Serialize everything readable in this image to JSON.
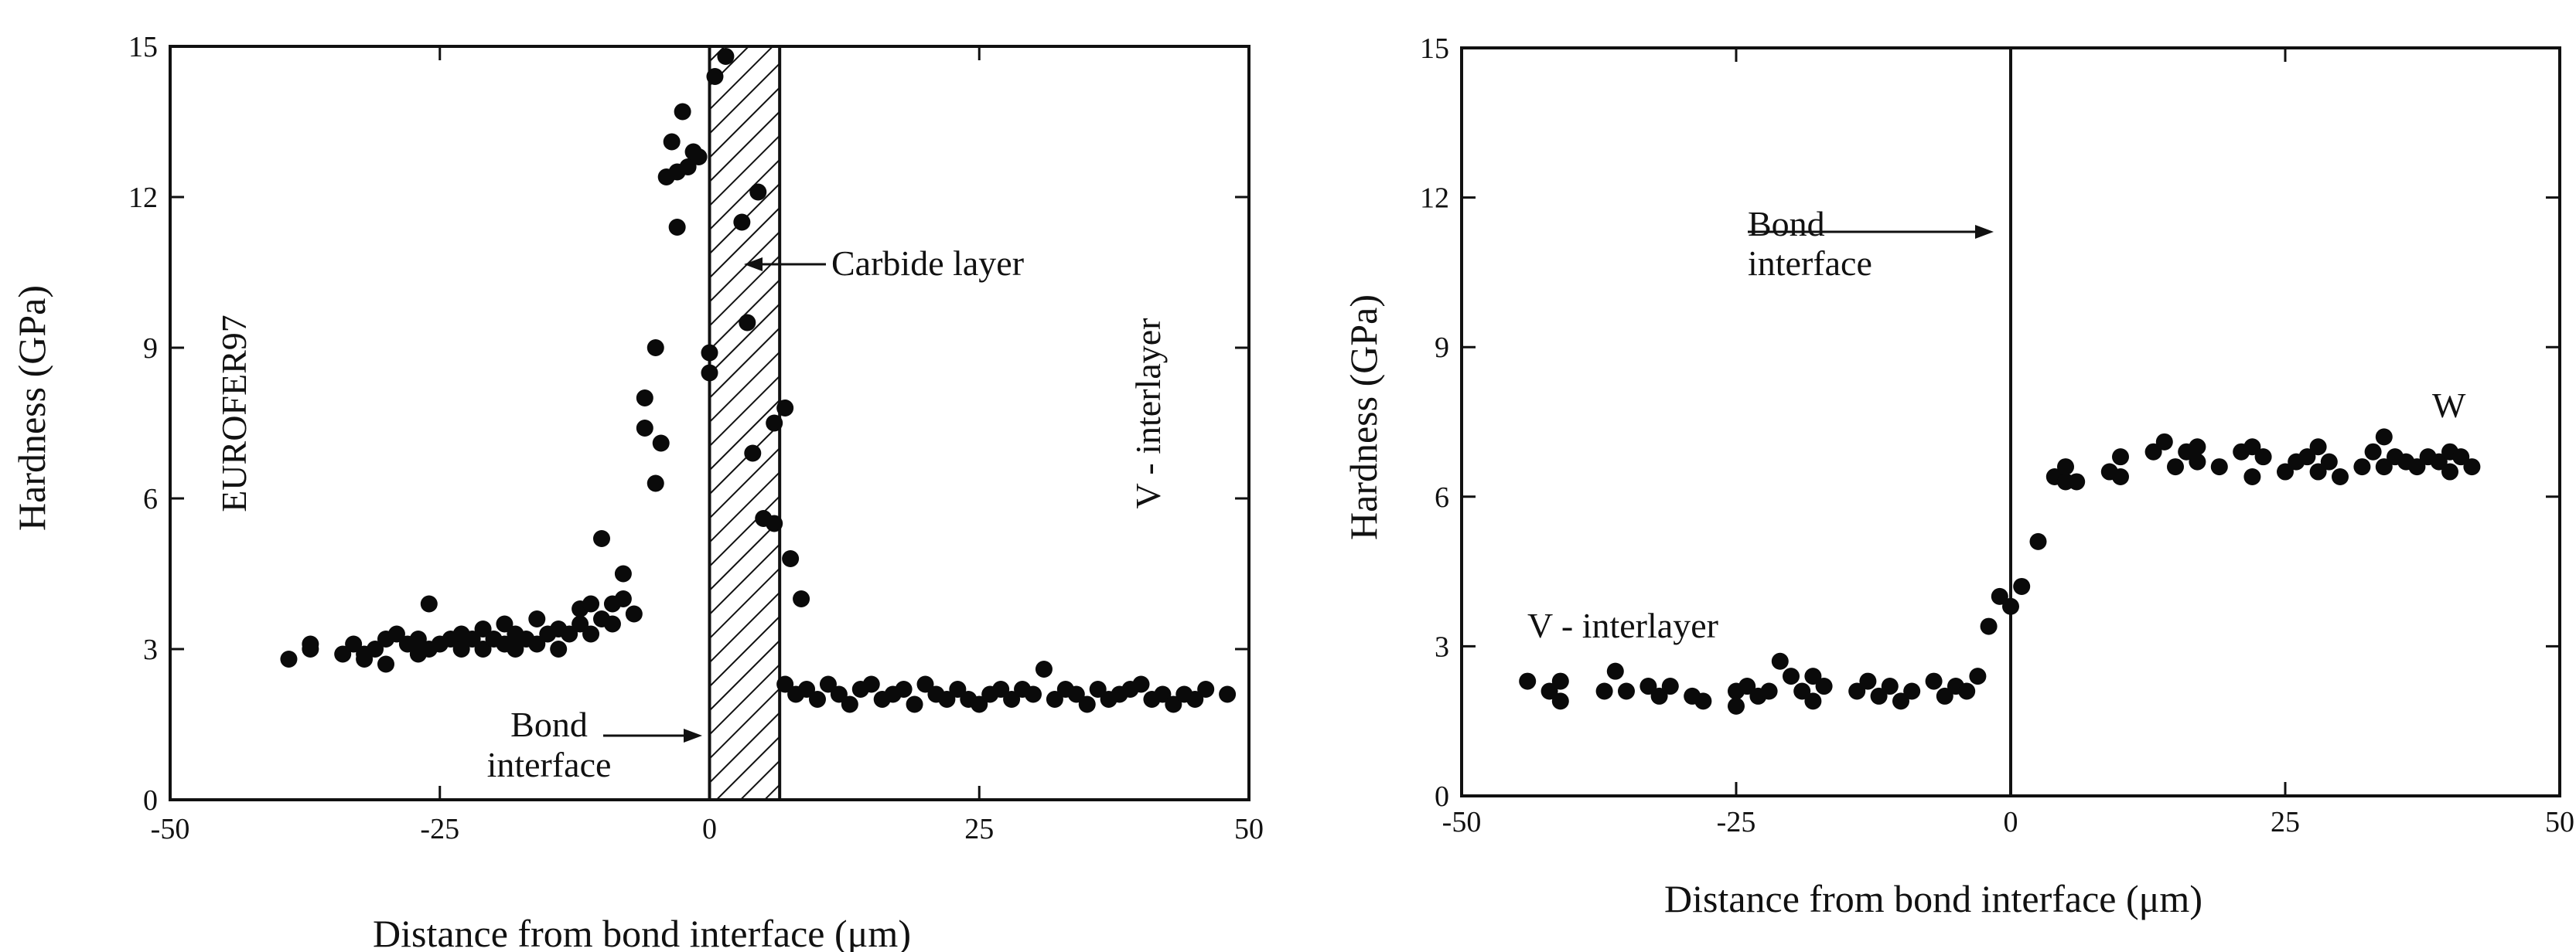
{
  "chart_data": [
    {
      "type": "scatter",
      "title": "",
      "xlabel": "Distance from bond interface (μm)",
      "ylabel": "Hardness (GPa)",
      "xlim": [
        -50,
        50
      ],
      "ylim": [
        0,
        15
      ],
      "xticks": [
        -50,
        -25,
        0,
        25,
        50
      ],
      "yticks": [
        0,
        3,
        6,
        9,
        12,
        15
      ],
      "xtick_labels": [
        "-50",
        "-25",
        "0",
        "25",
        "50"
      ],
      "ytick_labels": [
        "0",
        "3",
        "6",
        "9",
        "12",
        "15"
      ],
      "grid": false,
      "annotations": {
        "left_material": "EUROFER97",
        "right_material": "V - interlayer",
        "carbide_label": "Carbide layer",
        "bond_line1": "Bond",
        "bond_line2": "interface"
      },
      "vertical_lines": [
        0
      ],
      "shaded_region": [
        0,
        6.5
      ],
      "points": [
        [
          -39,
          2.8
        ],
        [
          -37,
          3.0
        ],
        [
          -37,
          3.1
        ],
        [
          -34,
          2.9
        ],
        [
          -33,
          3.1
        ],
        [
          -32,
          2.9
        ],
        [
          -32,
          2.8
        ],
        [
          -31,
          3.0
        ],
        [
          -30,
          3.2
        ],
        [
          -30,
          2.7
        ],
        [
          -29,
          3.3
        ],
        [
          -28,
          3.1
        ],
        [
          -27,
          2.9
        ],
        [
          -27,
          3.2
        ],
        [
          -26,
          3.0
        ],
        [
          -26,
          3.9
        ],
        [
          -25,
          3.1
        ],
        [
          -24,
          3.2
        ],
        [
          -23,
          3.0
        ],
        [
          -23,
          3.3
        ],
        [
          -22,
          3.2
        ],
        [
          -21,
          3.4
        ],
        [
          -21,
          3.0
        ],
        [
          -20,
          3.2
        ],
        [
          -19,
          3.1
        ],
        [
          -19,
          3.5
        ],
        [
          -18,
          3.3
        ],
        [
          -18,
          3.0
        ],
        [
          -17,
          3.2
        ],
        [
          -16,
          3.1
        ],
        [
          -16,
          3.6
        ],
        [
          -15,
          3.3
        ],
        [
          -14,
          3.0
        ],
        [
          -14,
          3.4
        ],
        [
          -13,
          3.3
        ],
        [
          -12,
          3.8
        ],
        [
          -12,
          3.5
        ],
        [
          -11,
          3.9
        ],
        [
          -11,
          3.3
        ],
        [
          -10,
          3.6
        ],
        [
          -10,
          5.2
        ],
        [
          -9,
          3.9
        ],
        [
          -9,
          3.5
        ],
        [
          -8,
          4.0
        ],
        [
          -8,
          4.5
        ],
        [
          -7,
          3.7
        ],
        [
          -6,
          8.0
        ],
        [
          -6,
          7.4
        ],
        [
          -5,
          9.0
        ],
        [
          -5,
          6.3
        ],
        [
          -4.5,
          7.1
        ],
        [
          -4,
          12.4
        ],
        [
          -3.5,
          13.1
        ],
        [
          -3,
          11.4
        ],
        [
          -3,
          12.5
        ],
        [
          -2.5,
          13.7
        ],
        [
          -2,
          12.6
        ],
        [
          -1.5,
          12.9
        ],
        [
          -1,
          12.8
        ],
        [
          0,
          8.9
        ],
        [
          0,
          8.5
        ],
        [
          0.5,
          14.4
        ],
        [
          1.5,
          14.8
        ],
        [
          3,
          11.5
        ],
        [
          3.5,
          9.5
        ],
        [
          4,
          6.9
        ],
        [
          4.5,
          12.1
        ],
        [
          5,
          5.6
        ],
        [
          6,
          7.5
        ],
        [
          6,
          5.5
        ],
        [
          7,
          7.8
        ],
        [
          7.5,
          4.8
        ],
        [
          8.5,
          4.0
        ],
        [
          7,
          2.3
        ],
        [
          8,
          2.1
        ],
        [
          9,
          2.2
        ],
        [
          10,
          2.0
        ],
        [
          11,
          2.3
        ],
        [
          12,
          2.1
        ],
        [
          13,
          1.9
        ],
        [
          14,
          2.2
        ],
        [
          15,
          2.3
        ],
        [
          16,
          2.0
        ],
        [
          17,
          2.1
        ],
        [
          18,
          2.2
        ],
        [
          19,
          1.9
        ],
        [
          20,
          2.3
        ],
        [
          21,
          2.1
        ],
        [
          22,
          2.0
        ],
        [
          23,
          2.2
        ],
        [
          24,
          2.0
        ],
        [
          25,
          1.9
        ],
        [
          26,
          2.1
        ],
        [
          27,
          2.2
        ],
        [
          28,
          2.0
        ],
        [
          29,
          2.2
        ],
        [
          30,
          2.1
        ],
        [
          31,
          2.6
        ],
        [
          32,
          2.0
        ],
        [
          33,
          2.2
        ],
        [
          34,
          2.1
        ],
        [
          35,
          1.9
        ],
        [
          36,
          2.2
        ],
        [
          37,
          2.0
        ],
        [
          38,
          2.1
        ],
        [
          39,
          2.2
        ],
        [
          40,
          2.3
        ],
        [
          41,
          2.0
        ],
        [
          42,
          2.1
        ],
        [
          43,
          1.9
        ],
        [
          44,
          2.1
        ],
        [
          45,
          2.0
        ],
        [
          46,
          2.2
        ],
        [
          48,
          2.1
        ]
      ]
    },
    {
      "type": "scatter",
      "title": "",
      "xlabel": "Distance from bond interface (μm)",
      "ylabel": "Hardness (GPa)",
      "xlim": [
        -50,
        50
      ],
      "ylim": [
        0,
        15
      ],
      "xticks": [
        -50,
        -25,
        0,
        25,
        50
      ],
      "yticks": [
        0,
        3,
        6,
        9,
        12,
        15
      ],
      "xtick_labels": [
        "-50",
        "-25",
        "0",
        "25",
        "50"
      ],
      "ytick_labels": [
        "0",
        "3",
        "6",
        "9",
        "12",
        "15"
      ],
      "grid": false,
      "annotations": {
        "left_material": "V - interlayer",
        "right_material": "W",
        "bond_line1": "Bond",
        "bond_line2": "interface"
      },
      "vertical_lines": [
        0
      ],
      "points": [
        [
          -44,
          2.3
        ],
        [
          -42,
          2.1
        ],
        [
          -41,
          2.3
        ],
        [
          -41,
          1.9
        ],
        [
          -37,
          2.1
        ],
        [
          -36,
          2.5
        ],
        [
          -35,
          2.1
        ],
        [
          -33,
          2.2
        ],
        [
          -32,
          2.0
        ],
        [
          -31,
          2.2
        ],
        [
          -29,
          2.0
        ],
        [
          -28,
          1.9
        ],
        [
          -25,
          2.1
        ],
        [
          -25,
          1.8
        ],
        [
          -24,
          2.2
        ],
        [
          -23,
          2.0
        ],
        [
          -22,
          2.1
        ],
        [
          -21,
          2.7
        ],
        [
          -20,
          2.4
        ],
        [
          -19,
          2.1
        ],
        [
          -18,
          1.9
        ],
        [
          -18,
          2.4
        ],
        [
          -17,
          2.2
        ],
        [
          -14,
          2.1
        ],
        [
          -13,
          2.3
        ],
        [
          -12,
          2.0
        ],
        [
          -11,
          2.2
        ],
        [
          -10,
          1.9
        ],
        [
          -9,
          2.1
        ],
        [
          -7,
          2.3
        ],
        [
          -6,
          2.0
        ],
        [
          -5,
          2.2
        ],
        [
          -4,
          2.1
        ],
        [
          -3,
          2.4
        ],
        [
          -2,
          3.4
        ],
        [
          -1,
          4.0
        ],
        [
          0,
          3.8
        ],
        [
          1,
          4.2
        ],
        [
          2.5,
          5.1
        ],
        [
          4,
          6.4
        ],
        [
          5,
          6.6
        ],
        [
          5,
          6.3
        ],
        [
          6,
          6.3
        ],
        [
          9,
          6.5
        ],
        [
          10,
          6.8
        ],
        [
          10,
          6.4
        ],
        [
          13,
          6.9
        ],
        [
          14,
          7.1
        ],
        [
          15,
          6.6
        ],
        [
          16,
          6.9
        ],
        [
          17,
          7.0
        ],
        [
          17,
          6.7
        ],
        [
          19,
          6.6
        ],
        [
          21,
          6.9
        ],
        [
          22,
          7.0
        ],
        [
          22,
          6.4
        ],
        [
          23,
          6.8
        ],
        [
          25,
          6.5
        ],
        [
          26,
          6.7
        ],
        [
          27,
          6.8
        ],
        [
          28,
          7.0
        ],
        [
          28,
          6.5
        ],
        [
          29,
          6.7
        ],
        [
          30,
          6.4
        ],
        [
          32,
          6.6
        ],
        [
          33,
          6.9
        ],
        [
          34,
          7.2
        ],
        [
          34,
          6.6
        ],
        [
          35,
          6.8
        ],
        [
          36,
          6.7
        ],
        [
          37,
          6.6
        ],
        [
          38,
          6.8
        ],
        [
          39,
          6.7
        ],
        [
          40,
          6.9
        ],
        [
          40,
          6.5
        ],
        [
          41,
          6.8
        ],
        [
          42,
          6.6
        ]
      ]
    }
  ]
}
